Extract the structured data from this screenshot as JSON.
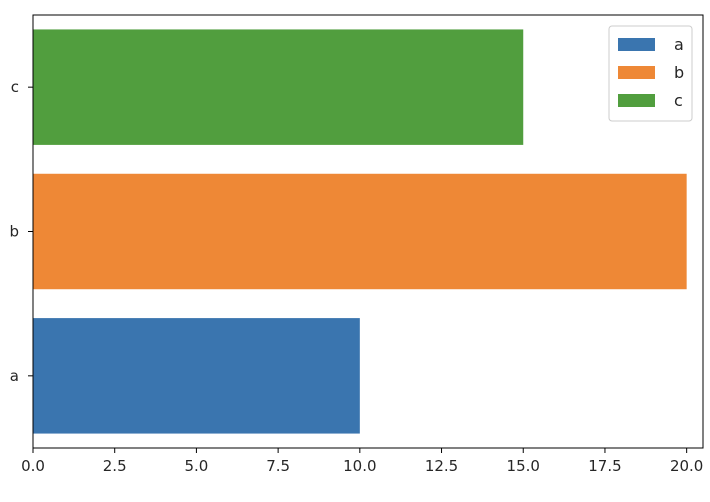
{
  "chart_data": {
    "type": "bar",
    "orientation": "horizontal",
    "categories": [
      "a",
      "b",
      "c"
    ],
    "values": [
      10,
      20,
      15
    ],
    "colors": [
      "#3a75af",
      "#ee8836",
      "#519e3e"
    ],
    "xlim": [
      0,
      20.5
    ],
    "xticks": [
      "0.0",
      "2.5",
      "5.0",
      "7.5",
      "10.0",
      "12.5",
      "15.0",
      "17.5",
      "20.0"
    ],
    "xtick_values": [
      0,
      2.5,
      5,
      7.5,
      10,
      12.5,
      15,
      17.5,
      20
    ],
    "grid": false,
    "legend": {
      "placement": "top-right",
      "entries": [
        "a",
        "b",
        "c"
      ]
    }
  }
}
